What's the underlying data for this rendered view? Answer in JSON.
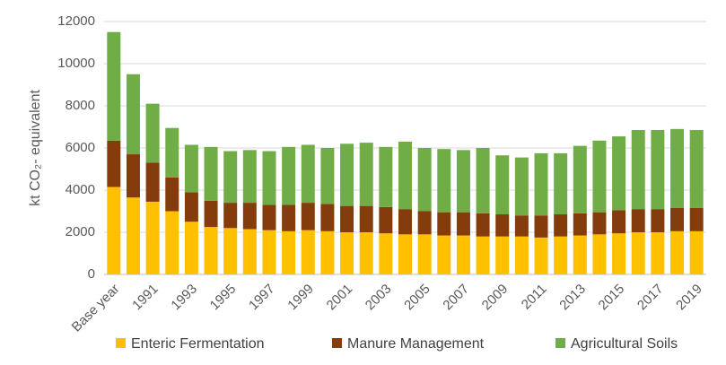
{
  "chart_data": {
    "type": "stacked_bar",
    "ylabel": "kt CO₂- equivalent",
    "categories": [
      "Base year",
      null,
      "1991",
      null,
      "1993",
      null,
      "1995",
      null,
      "1997",
      null,
      "1999",
      null,
      "2001",
      null,
      "2003",
      null,
      "2005",
      null,
      "2007",
      null,
      "2009",
      null,
      "2011",
      null,
      "2013",
      null,
      "2015",
      null,
      "2017",
      null,
      "2019"
    ],
    "series": [
      {
        "name": "Enteric Fermentation",
        "color": "#ffc000",
        "values": [
          4150,
          3650,
          3450,
          3000,
          2500,
          2250,
          2200,
          2150,
          2100,
          2050,
          2100,
          2050,
          2000,
          2000,
          1950,
          1900,
          1900,
          1850,
          1850,
          1800,
          1800,
          1800,
          1750,
          1800,
          1850,
          1900,
          1950,
          2000,
          2000,
          2050,
          2050
        ]
      },
      {
        "name": "Manure Management",
        "color": "#843c0c",
        "values": [
          2200,
          2050,
          1850,
          1600,
          1400,
          1250,
          1200,
          1250,
          1200,
          1250,
          1300,
          1300,
          1250,
          1250,
          1250,
          1200,
          1100,
          1100,
          1100,
          1100,
          1050,
          1000,
          1050,
          1050,
          1050,
          1050,
          1100,
          1100,
          1100,
          1100,
          1100
        ]
      },
      {
        "name": "Agricultural Soils",
        "color": "#70ad47",
        "values": [
          5150,
          3800,
          2800,
          2350,
          2250,
          2550,
          2450,
          2500,
          2550,
          2750,
          2750,
          2650,
          2950,
          3000,
          2850,
          3200,
          3000,
          3000,
          2950,
          3100,
          2800,
          2750,
          2950,
          2900,
          3200,
          3400,
          3500,
          3750,
          3750,
          3750,
          3700
        ]
      }
    ],
    "ylim": [
      0,
      12000
    ],
    "yticks": [
      0,
      2000,
      4000,
      6000,
      8000,
      10000,
      12000
    ],
    "grid": true,
    "legend": "bottom"
  }
}
